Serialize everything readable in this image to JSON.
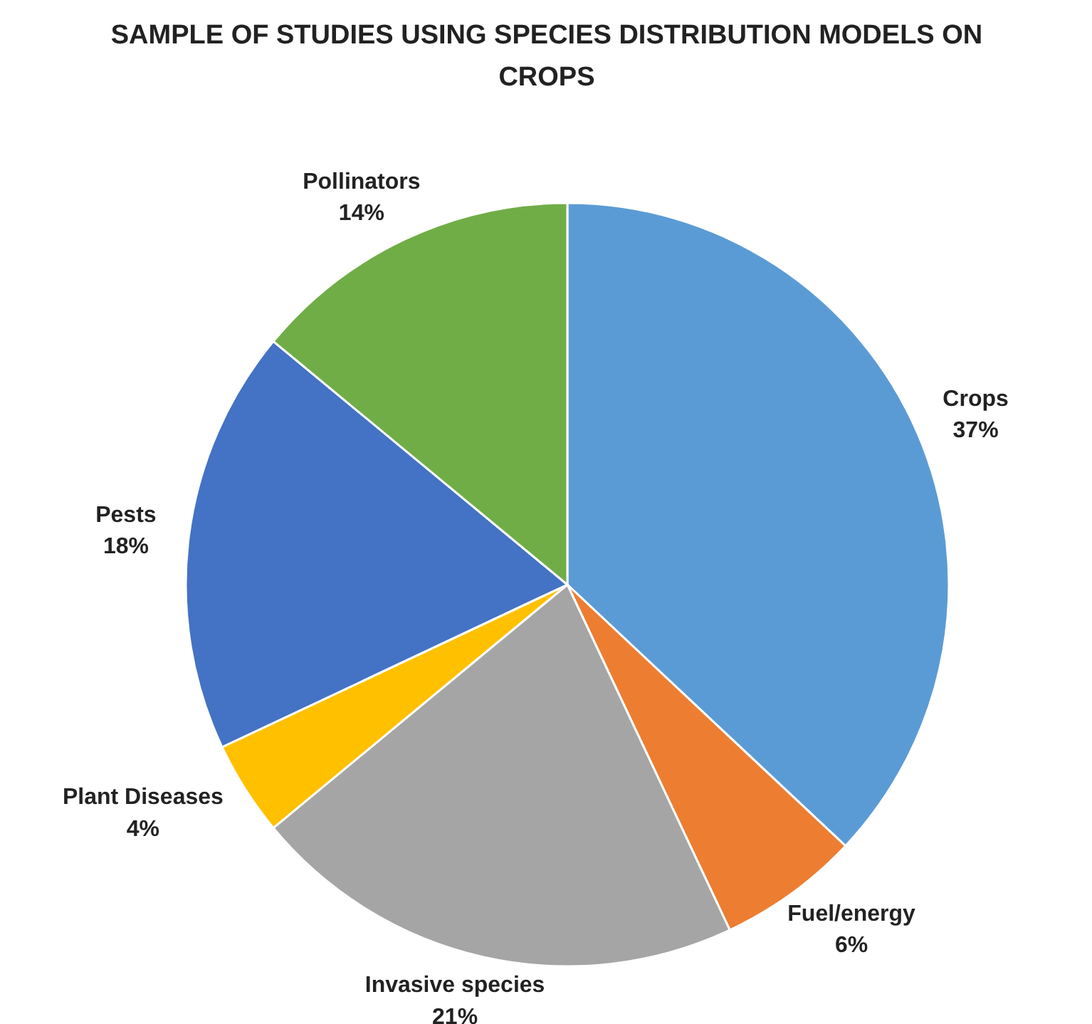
{
  "chart_data": {
    "type": "pie",
    "title": "SAMPLE OF STUDIES USING SPECIES DISTRIBUTION MODELS ON CROPS",
    "categories": [
      "Crops",
      "Fuel/energy",
      "Invasive species",
      "Plant Diseases",
      "Pests",
      "Pollinators"
    ],
    "values": [
      37,
      6,
      21,
      4,
      18,
      14
    ],
    "value_labels": [
      "37%",
      "6%",
      "21%",
      "4%",
      "18%",
      "14%"
    ],
    "colors": [
      "#5b9bd5",
      "#ed7d31",
      "#a5a5a5",
      "#ffc000",
      "#4472c4",
      "#70ad47"
    ]
  }
}
